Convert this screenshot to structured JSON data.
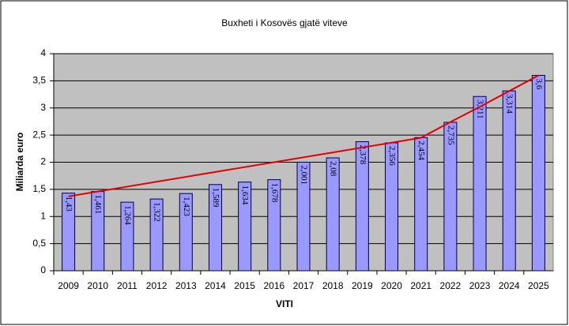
{
  "chart_data": {
    "type": "bar",
    "title": "Buxheti i Kosovës gjatë viteve",
    "xlabel": "VITI",
    "ylabel": "Miliarda euro",
    "categories": [
      "2009",
      "2010",
      "2011",
      "2012",
      "2013",
      "2014",
      "2015",
      "2016",
      "2017",
      "2018",
      "2019",
      "2020",
      "2021",
      "2022",
      "2023",
      "2024",
      "2025"
    ],
    "series": [
      {
        "type": "bar",
        "color": "#9999ff",
        "values": [
          1.43,
          1.461,
          1.264,
          1.322,
          1.423,
          1.589,
          1.634,
          1.678,
          2.001,
          2.08,
          2.378,
          2.356,
          2.454,
          2.735,
          3.211,
          3.314,
          3.6
        ],
        "value_labels": [
          "1,43",
          "1,461",
          "1,264",
          "1,322",
          "1,423",
          "1,589",
          "1,634",
          "1,678",
          "2,001",
          "2,08",
          "2,378",
          "2,356",
          "2,454",
          "2,735",
          "3,211",
          "3,314",
          "3,6"
        ]
      },
      {
        "type": "line",
        "color": "#e00000",
        "values": [
          1.37,
          1.46,
          1.55,
          1.64,
          1.73,
          1.82,
          1.91,
          2.0,
          2.09,
          2.18,
          2.27,
          2.36,
          2.45,
          2.74,
          3.02,
          3.31,
          3.6
        ]
      }
    ],
    "ylim": [
      0,
      4
    ],
    "yticks": [
      0,
      {
        "value": 0.5,
        "label": "0,5"
      },
      1,
      {
        "value": 1.5,
        "label": "1,5"
      },
      2,
      {
        "value": 2.5,
        "label": "2,5"
      },
      3,
      {
        "value": 3.5,
        "label": "3,5"
      },
      4
    ],
    "grid": true,
    "plot_background": "#c0c0c0"
  }
}
